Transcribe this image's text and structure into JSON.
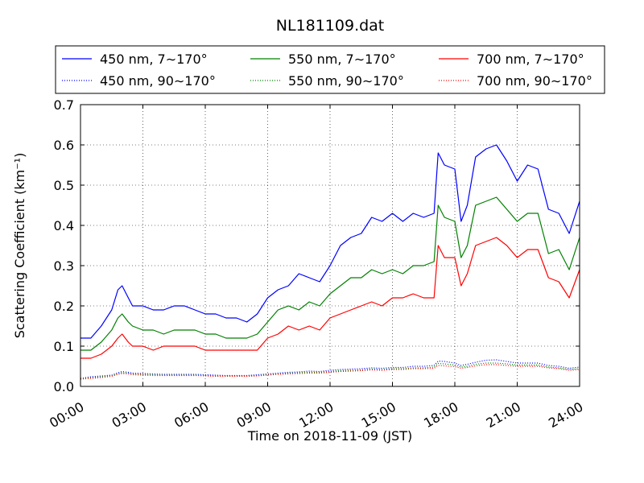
{
  "chart_data": {
    "type": "line",
    "title": "NL181109.dat",
    "xlabel": "Time on 2018-11-09 (JST)",
    "ylabel": "Scattering Coefficient (km⁻¹)",
    "xlim": [
      0,
      24
    ],
    "ylim": [
      0.0,
      0.7
    ],
    "x_ticks": [
      0,
      3,
      6,
      9,
      12,
      15,
      18,
      21,
      24
    ],
    "x_tick_labels": [
      "00:00",
      "03:00",
      "06:00",
      "09:00",
      "12:00",
      "15:00",
      "18:00",
      "21:00",
      "24:00"
    ],
    "y_ticks": [
      0.0,
      0.1,
      0.2,
      0.3,
      0.4,
      0.5,
      0.6,
      0.7
    ],
    "y_tick_labels": [
      "0.0",
      "0.1",
      "0.2",
      "0.3",
      "0.4",
      "0.5",
      "0.6",
      "0.7"
    ],
    "grid": true,
    "legend_placement": "top, outside plot",
    "x": [
      0,
      0.5,
      1,
      1.5,
      1.8,
      2,
      2.3,
      2.5,
      3,
      3.5,
      4,
      4.5,
      5,
      5.5,
      6,
      6.5,
      7,
      7.5,
      8,
      8.5,
      9,
      9.5,
      10,
      10.5,
      11,
      11.5,
      12,
      12.5,
      13,
      13.5,
      14,
      14.5,
      15,
      15.5,
      16,
      16.5,
      17,
      17.2,
      17.5,
      18,
      18.3,
      18.6,
      19,
      19.5,
      20,
      20.5,
      21,
      21.5,
      22,
      22.5,
      23,
      23.5,
      24
    ],
    "series": [
      {
        "name": "450 nm, 7∼170°",
        "color": "#0000ff",
        "style": "solid",
        "values": [
          0.12,
          0.12,
          0.15,
          0.19,
          0.24,
          0.25,
          0.22,
          0.2,
          0.2,
          0.19,
          0.19,
          0.2,
          0.2,
          0.19,
          0.18,
          0.18,
          0.17,
          0.17,
          0.16,
          0.18,
          0.22,
          0.24,
          0.25,
          0.28,
          0.27,
          0.26,
          0.3,
          0.35,
          0.37,
          0.38,
          0.42,
          0.41,
          0.43,
          0.41,
          0.43,
          0.42,
          0.43,
          0.58,
          0.55,
          0.54,
          0.41,
          0.45,
          0.57,
          0.59,
          0.6,
          0.56,
          0.51,
          0.55,
          0.54,
          0.44,
          0.43,
          0.38,
          0.46
        ]
      },
      {
        "name": "550 nm, 7∼170°",
        "color": "#008000",
        "style": "solid",
        "values": [
          0.09,
          0.09,
          0.11,
          0.14,
          0.17,
          0.18,
          0.16,
          0.15,
          0.14,
          0.14,
          0.13,
          0.14,
          0.14,
          0.14,
          0.13,
          0.13,
          0.12,
          0.12,
          0.12,
          0.13,
          0.16,
          0.19,
          0.2,
          0.19,
          0.21,
          0.2,
          0.23,
          0.25,
          0.27,
          0.27,
          0.29,
          0.28,
          0.29,
          0.28,
          0.3,
          0.3,
          0.31,
          0.45,
          0.42,
          0.41,
          0.32,
          0.35,
          0.45,
          0.46,
          0.47,
          0.44,
          0.41,
          0.43,
          0.43,
          0.33,
          0.34,
          0.29,
          0.37
        ]
      },
      {
        "name": "700 nm, 7∼170°",
        "color": "#ff0000",
        "style": "solid",
        "values": [
          0.07,
          0.07,
          0.08,
          0.1,
          0.12,
          0.13,
          0.11,
          0.1,
          0.1,
          0.09,
          0.1,
          0.1,
          0.1,
          0.1,
          0.09,
          0.09,
          0.09,
          0.09,
          0.09,
          0.09,
          0.12,
          0.13,
          0.15,
          0.14,
          0.15,
          0.14,
          0.17,
          0.18,
          0.19,
          0.2,
          0.21,
          0.2,
          0.22,
          0.22,
          0.23,
          0.22,
          0.22,
          0.35,
          0.32,
          0.32,
          0.25,
          0.28,
          0.35,
          0.36,
          0.37,
          0.35,
          0.32,
          0.34,
          0.34,
          0.27,
          0.26,
          0.22,
          0.29
        ]
      },
      {
        "name": "450 nm, 90∼170°",
        "color": "#0000ff",
        "style": "dotted",
        "values": [
          0.02,
          0.024,
          0.026,
          0.028,
          0.034,
          0.037,
          0.035,
          0.033,
          0.032,
          0.031,
          0.03,
          0.03,
          0.03,
          0.03,
          0.029,
          0.028,
          0.027,
          0.027,
          0.027,
          0.029,
          0.031,
          0.033,
          0.035,
          0.036,
          0.038,
          0.037,
          0.04,
          0.042,
          0.043,
          0.044,
          0.046,
          0.045,
          0.047,
          0.047,
          0.05,
          0.05,
          0.052,
          0.063,
          0.062,
          0.058,
          0.052,
          0.055,
          0.06,
          0.065,
          0.066,
          0.062,
          0.058,
          0.058,
          0.058,
          0.052,
          0.05,
          0.045,
          0.048
        ]
      },
      {
        "name": "550 nm, 90∼170°",
        "color": "#008000",
        "style": "dotted",
        "values": [
          0.02,
          0.022,
          0.024,
          0.027,
          0.032,
          0.034,
          0.033,
          0.031,
          0.03,
          0.029,
          0.028,
          0.028,
          0.028,
          0.028,
          0.027,
          0.026,
          0.026,
          0.026,
          0.026,
          0.027,
          0.029,
          0.031,
          0.033,
          0.034,
          0.035,
          0.035,
          0.037,
          0.039,
          0.04,
          0.041,
          0.043,
          0.042,
          0.044,
          0.044,
          0.046,
          0.046,
          0.048,
          0.057,
          0.056,
          0.053,
          0.048,
          0.05,
          0.055,
          0.058,
          0.058,
          0.056,
          0.053,
          0.053,
          0.053,
          0.048,
          0.046,
          0.042,
          0.044
        ]
      },
      {
        "name": "700 nm, 90∼170°",
        "color": "#ff0000",
        "style": "dotted",
        "values": [
          0.018,
          0.02,
          0.022,
          0.025,
          0.03,
          0.032,
          0.031,
          0.029,
          0.028,
          0.027,
          0.027,
          0.027,
          0.027,
          0.027,
          0.026,
          0.025,
          0.025,
          0.025,
          0.025,
          0.026,
          0.028,
          0.03,
          0.031,
          0.032,
          0.033,
          0.033,
          0.035,
          0.037,
          0.038,
          0.039,
          0.041,
          0.04,
          0.042,
          0.042,
          0.044,
          0.044,
          0.045,
          0.052,
          0.051,
          0.049,
          0.045,
          0.047,
          0.051,
          0.054,
          0.054,
          0.052,
          0.05,
          0.05,
          0.05,
          0.046,
          0.044,
          0.04,
          0.042
        ]
      }
    ]
  }
}
